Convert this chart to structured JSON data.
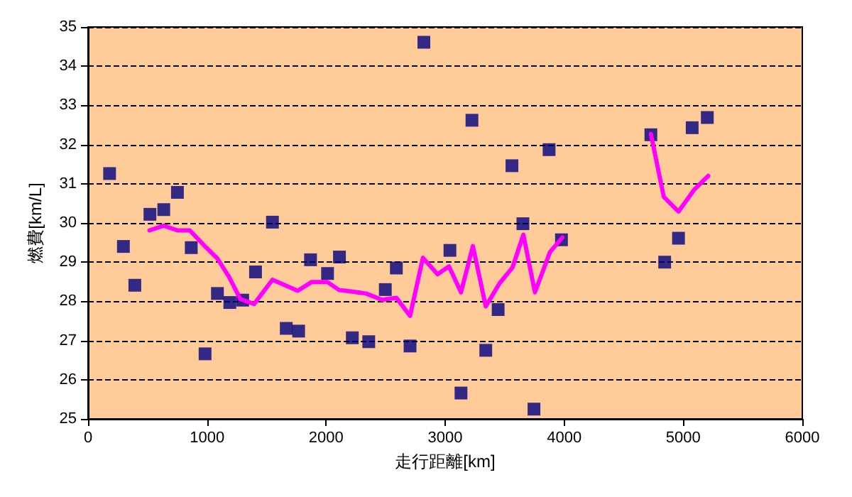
{
  "chart_data": {
    "type": "scatter",
    "xlabel": "走行距離[km]",
    "ylabel": "燃費[km/L]",
    "xlim": [
      0,
      6000
    ],
    "xticks": [
      0,
      1000,
      2000,
      3000,
      4000,
      5000,
      6000
    ],
    "ylim": [
      25,
      35
    ],
    "yticks": [
      25,
      26,
      27,
      28,
      29,
      30,
      31,
      32,
      33,
      34,
      35
    ],
    "grid": "y",
    "marker": "square",
    "series": [
      {
        "color": "#000080",
        "x": [
          181,
          297,
          393,
          520,
          636,
          751,
          867,
          983,
          1087,
          1191,
          1299,
          1407,
          1549,
          1665,
          1769,
          1869,
          2012,
          2112,
          2220,
          2358,
          2497,
          2590,
          2705,
          2821,
          3040,
          3133,
          3225,
          3341,
          3445,
          3561,
          3653,
          3746,
          3873,
          3977,
          4728,
          4844,
          4960,
          5075,
          5202
        ],
        "values": [
          31.26,
          29.4,
          28.41,
          30.22,
          30.34,
          30.78,
          29.37,
          26.66,
          28.2,
          27.97,
          28.03,
          28.75,
          30.02,
          27.31,
          27.24,
          29.06,
          28.71,
          29.13,
          27.07,
          26.97,
          28.3,
          28.85,
          26.86,
          34.61,
          29.3,
          25.66,
          32.62,
          26.75,
          27.79,
          31.46,
          29.98,
          25.25,
          31.87,
          29.57,
          32.25,
          29.0,
          29.61,
          32.43,
          32.69
        ]
      },
      {
        "type": "line",
        "color": "#ff00ff",
        "marker": "none",
        "line_style": "solid",
        "x": [
          516,
          636,
          751,
          855,
          990,
          1087,
          1183,
          1279,
          1395,
          1549,
          1761,
          1877,
          2012,
          2108,
          2165,
          2335,
          2470,
          2590,
          2705,
          2813,
          2936,
          3032,
          3133,
          3233,
          3341,
          3457,
          3565,
          3657,
          3754,
          3881,
          3985
        ],
        "values": [
          29.81,
          29.93,
          29.81,
          29.81,
          29.38,
          29.09,
          28.63,
          28.06,
          27.93,
          28.55,
          28.27,
          28.49,
          28.49,
          28.29,
          28.27,
          28.2,
          28.04,
          28.09,
          27.63,
          29.11,
          28.69,
          28.89,
          28.23,
          29.41,
          27.87,
          28.46,
          28.86,
          29.7,
          28.23,
          29.26,
          29.63
        ]
      },
      {
        "type": "line",
        "color": "#ff00ff",
        "marker": "none",
        "line_style": "solid",
        "x": [
          4728,
          4836,
          4960,
          5095,
          5210
        ],
        "values": [
          32.27,
          30.67,
          30.29,
          30.86,
          31.2
        ]
      }
    ]
  }
}
